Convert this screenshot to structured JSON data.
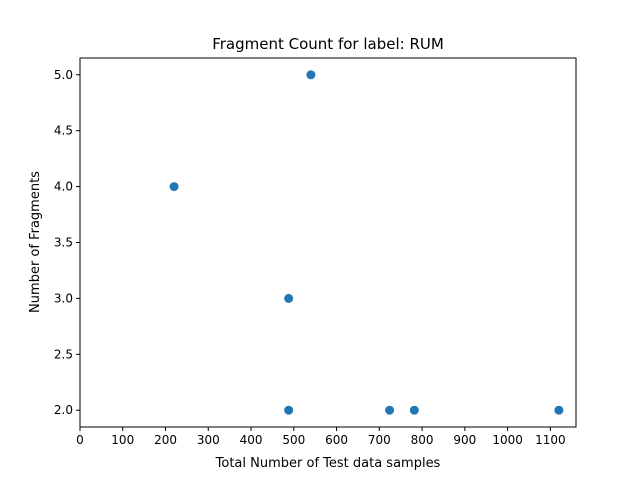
{
  "chart_data": {
    "type": "scatter",
    "title": "Fragment Count for label: RUM",
    "xlabel": "Total Number of Test data samples",
    "ylabel": "Number of Fragments",
    "xlim": [
      0,
      1160
    ],
    "ylim": [
      1.85,
      5.15
    ],
    "xticks": [
      0,
      100,
      200,
      300,
      400,
      500,
      600,
      700,
      800,
      900,
      1000,
      1100
    ],
    "yticks": [
      2.0,
      2.5,
      3.0,
      3.5,
      4.0,
      4.5,
      5.0
    ],
    "grid": false,
    "series": [
      {
        "color": "#1f77b4",
        "points": [
          {
            "x": 220,
            "y": 4.0
          },
          {
            "x": 540,
            "y": 5.0
          },
          {
            "x": 488,
            "y": 3.0
          },
          {
            "x": 488,
            "y": 2.0
          },
          {
            "x": 724,
            "y": 2.0
          },
          {
            "x": 782,
            "y": 2.0
          },
          {
            "x": 1120,
            "y": 2.0
          }
        ]
      }
    ]
  }
}
